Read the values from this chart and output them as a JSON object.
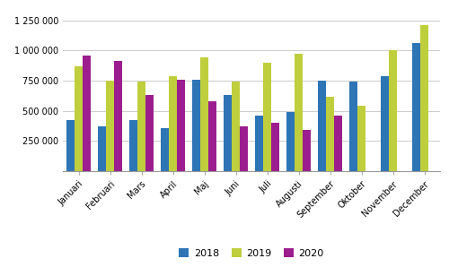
{
  "months": [
    "Januari",
    "Februari",
    "Mars",
    "April",
    "Maj",
    "Juni",
    "Juli",
    "Augusti",
    "September",
    "Oktober",
    "November",
    "December"
  ],
  "values_2018": [
    420000,
    370000,
    425000,
    360000,
    760000,
    630000,
    460000,
    490000,
    750000,
    740000,
    785000,
    1060000
  ],
  "values_2019": [
    870000,
    750000,
    745000,
    790000,
    940000,
    745000,
    900000,
    970000,
    620000,
    540000,
    1000000,
    1210000
  ],
  "values_2020": [
    960000,
    910000,
    630000,
    760000,
    580000,
    370000,
    400000,
    340000,
    460000,
    0,
    0,
    0
  ],
  "color_2018": "#2E75B6",
  "color_2019": "#BFCE3C",
  "color_2020": "#9B1D8E",
  "legend_labels": [
    "2018",
    "2019",
    "2020"
  ],
  "yticks": [
    0,
    250000,
    500000,
    750000,
    1000000,
    1250000
  ],
  "ytick_labels": [
    "",
    "250 000",
    "500 000",
    "750 000",
    "1 000 000",
    "1 250 000"
  ],
  "background_color": "#ffffff",
  "grid_color": "#cccccc"
}
